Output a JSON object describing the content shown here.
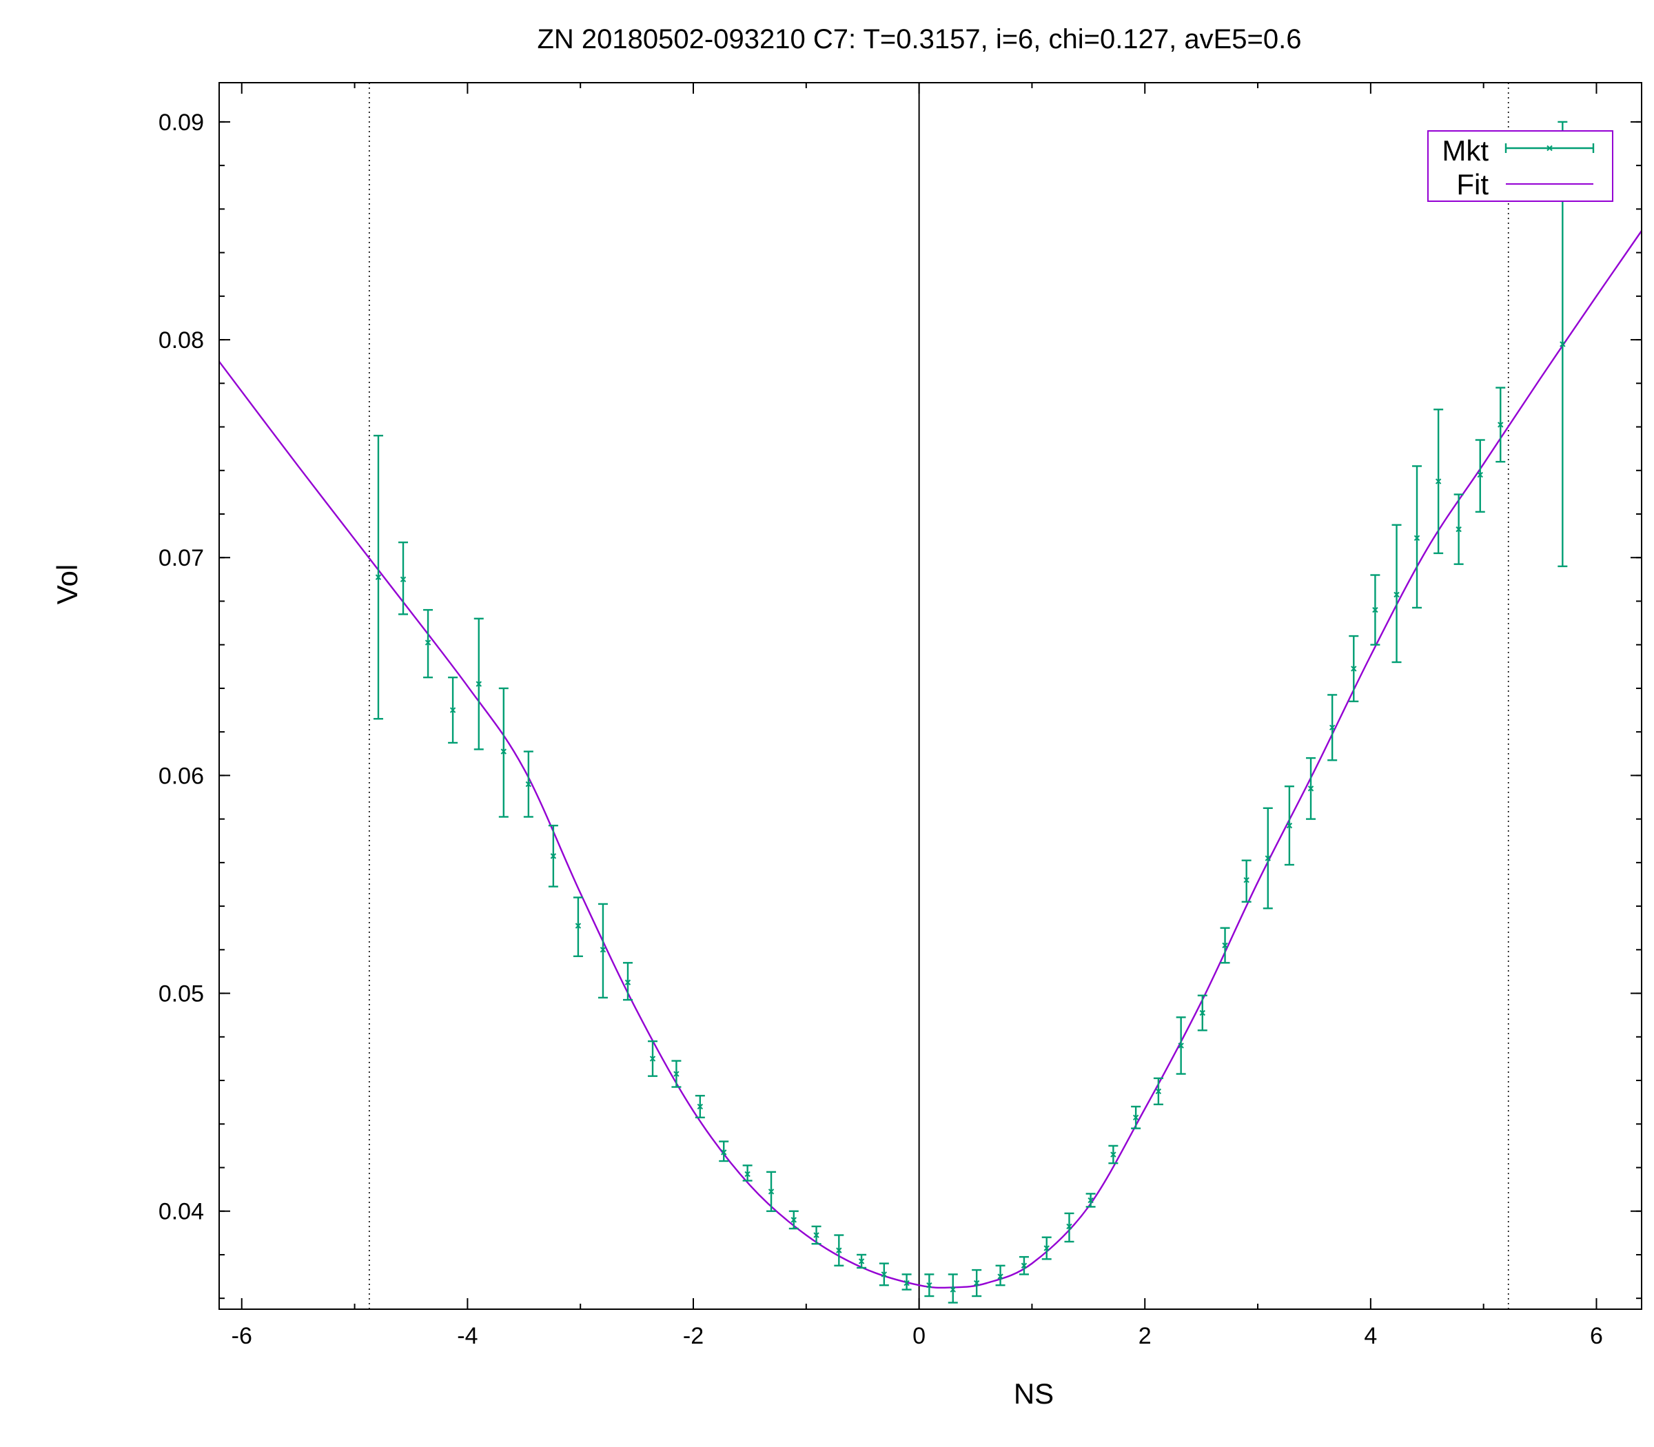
{
  "chart_data": {
    "type": "scatter",
    "title": "ZN 20180502-093210  C7:  T=0.3157, i=6, chi=0.127, avE5=0.6",
    "xlabel": "NS",
    "ylabel": "Vol",
    "xlim": [
      -6.2,
      6.4
    ],
    "ylim": [
      0.0355,
      0.0918
    ],
    "x_ticks": [
      -6,
      -4,
      -2,
      0,
      2,
      4,
      6
    ],
    "x_tick_labels": [
      "-6",
      "-4",
      "-2",
      "0",
      "2",
      "4",
      "6"
    ],
    "y_ticks": [
      0.04,
      0.05,
      0.06,
      0.07,
      0.08,
      0.09
    ],
    "y_tick_labels": [
      "0.04",
      "0.05",
      "0.06",
      "0.07",
      "0.08",
      "0.09"
    ],
    "grid": false,
    "legend_position": "top-right",
    "vertical_lines": [
      {
        "x": 0,
        "style": "solid"
      },
      {
        "x": -4.87,
        "style": "dotted"
      },
      {
        "x": 5.22,
        "style": "dotted"
      }
    ],
    "series": [
      {
        "name": "Mkt",
        "kind": "errorbars",
        "color": "#009e73",
        "points": [
          {
            "x": -4.79,
            "y": 0.0691,
            "lo": 0.0626,
            "hi": 0.0756
          },
          {
            "x": -4.57,
            "y": 0.069,
            "lo": 0.0674,
            "hi": 0.0707
          },
          {
            "x": -4.35,
            "y": 0.0661,
            "lo": 0.0645,
            "hi": 0.0676
          },
          {
            "x": -4.13,
            "y": 0.063,
            "lo": 0.0615,
            "hi": 0.0645
          },
          {
            "x": -3.9,
            "y": 0.0642,
            "lo": 0.0612,
            "hi": 0.0672
          },
          {
            "x": -3.68,
            "y": 0.0611,
            "lo": 0.0581,
            "hi": 0.064
          },
          {
            "x": -3.46,
            "y": 0.0596,
            "lo": 0.0581,
            "hi": 0.0611
          },
          {
            "x": -3.24,
            "y": 0.0563,
            "lo": 0.0549,
            "hi": 0.0577
          },
          {
            "x": -3.02,
            "y": 0.0531,
            "lo": 0.0517,
            "hi": 0.0544
          },
          {
            "x": -2.8,
            "y": 0.052,
            "lo": 0.0498,
            "hi": 0.0541
          },
          {
            "x": -2.58,
            "y": 0.0505,
            "lo": 0.0497,
            "hi": 0.0514
          },
          {
            "x": -2.36,
            "y": 0.047,
            "lo": 0.0462,
            "hi": 0.0478
          },
          {
            "x": -2.15,
            "y": 0.0463,
            "lo": 0.0457,
            "hi": 0.0469
          },
          {
            "x": -1.94,
            "y": 0.0448,
            "lo": 0.0443,
            "hi": 0.0453
          },
          {
            "x": -1.73,
            "y": 0.0427,
            "lo": 0.0423,
            "hi": 0.0432
          },
          {
            "x": -1.52,
            "y": 0.0417,
            "lo": 0.0414,
            "hi": 0.0421
          },
          {
            "x": -1.31,
            "y": 0.0409,
            "lo": 0.04,
            "hi": 0.0418
          },
          {
            "x": -1.11,
            "y": 0.0396,
            "lo": 0.0392,
            "hi": 0.04
          },
          {
            "x": -0.91,
            "y": 0.0389,
            "lo": 0.0385,
            "hi": 0.0393
          },
          {
            "x": -0.71,
            "y": 0.0382,
            "lo": 0.0375,
            "hi": 0.0389
          },
          {
            "x": -0.51,
            "y": 0.0377,
            "lo": 0.0374,
            "hi": 0.038
          },
          {
            "x": -0.31,
            "y": 0.0371,
            "lo": 0.0366,
            "hi": 0.0376
          },
          {
            "x": -0.11,
            "y": 0.0367,
            "lo": 0.0364,
            "hi": 0.0371
          },
          {
            "x": 0.09,
            "y": 0.0366,
            "lo": 0.0361,
            "hi": 0.0371
          },
          {
            "x": 0.3,
            "y": 0.0364,
            "lo": 0.0358,
            "hi": 0.0371
          },
          {
            "x": 0.51,
            "y": 0.0367,
            "lo": 0.0361,
            "hi": 0.0373
          },
          {
            "x": 0.72,
            "y": 0.037,
            "lo": 0.0366,
            "hi": 0.0375
          },
          {
            "x": 0.93,
            "y": 0.0375,
            "lo": 0.0371,
            "hi": 0.0379
          },
          {
            "x": 1.13,
            "y": 0.0383,
            "lo": 0.0378,
            "hi": 0.0388
          },
          {
            "x": 1.33,
            "y": 0.0393,
            "lo": 0.0386,
            "hi": 0.0399
          },
          {
            "x": 1.52,
            "y": 0.0405,
            "lo": 0.0402,
            "hi": 0.0408
          },
          {
            "x": 1.72,
            "y": 0.0426,
            "lo": 0.0422,
            "hi": 0.043
          },
          {
            "x": 1.92,
            "y": 0.0443,
            "lo": 0.0438,
            "hi": 0.0448
          },
          {
            "x": 2.12,
            "y": 0.0455,
            "lo": 0.0449,
            "hi": 0.0461
          },
          {
            "x": 2.32,
            "y": 0.0476,
            "lo": 0.0463,
            "hi": 0.0489
          },
          {
            "x": 2.51,
            "y": 0.0491,
            "lo": 0.0483,
            "hi": 0.0499
          },
          {
            "x": 2.71,
            "y": 0.0522,
            "lo": 0.0514,
            "hi": 0.053
          },
          {
            "x": 2.9,
            "y": 0.0552,
            "lo": 0.0542,
            "hi": 0.0561
          },
          {
            "x": 3.09,
            "y": 0.0562,
            "lo": 0.0539,
            "hi": 0.0585
          },
          {
            "x": 3.28,
            "y": 0.0577,
            "lo": 0.0559,
            "hi": 0.0595
          },
          {
            "x": 3.47,
            "y": 0.0594,
            "lo": 0.058,
            "hi": 0.0608
          },
          {
            "x": 3.66,
            "y": 0.0622,
            "lo": 0.0607,
            "hi": 0.0637
          },
          {
            "x": 3.85,
            "y": 0.0649,
            "lo": 0.0634,
            "hi": 0.0664
          },
          {
            "x": 4.04,
            "y": 0.0676,
            "lo": 0.066,
            "hi": 0.0692
          },
          {
            "x": 4.23,
            "y": 0.0683,
            "lo": 0.0652,
            "hi": 0.0715
          },
          {
            "x": 4.41,
            "y": 0.0709,
            "lo": 0.0677,
            "hi": 0.0742
          },
          {
            "x": 4.6,
            "y": 0.0735,
            "lo": 0.0702,
            "hi": 0.0768
          },
          {
            "x": 4.78,
            "y": 0.0713,
            "lo": 0.0697,
            "hi": 0.0729
          },
          {
            "x": 4.97,
            "y": 0.0738,
            "lo": 0.0721,
            "hi": 0.0754
          },
          {
            "x": 5.15,
            "y": 0.0761,
            "lo": 0.0744,
            "hi": 0.0778
          },
          {
            "x": 5.7,
            "y": 0.0798,
            "lo": 0.0696,
            "hi": 0.09
          }
        ]
      },
      {
        "name": "Fit",
        "kind": "line",
        "color": "#9400d3",
        "points": [
          {
            "x": -6.2,
            "y": 0.079
          },
          {
            "x": -5.5,
            "y": 0.0742
          },
          {
            "x": -4.8,
            "y": 0.0695
          },
          {
            "x": -4.0,
            "y": 0.0641
          },
          {
            "x": -3.5,
            "y": 0.0603
          },
          {
            "x": -3.0,
            "y": 0.0546
          },
          {
            "x": -2.5,
            "y": 0.0492
          },
          {
            "x": -2.0,
            "y": 0.0446
          },
          {
            "x": -1.5,
            "y": 0.0412
          },
          {
            "x": -1.0,
            "y": 0.0389
          },
          {
            "x": -0.5,
            "y": 0.0374
          },
          {
            "x": 0.0,
            "y": 0.0366
          },
          {
            "x": 0.3,
            "y": 0.0365
          },
          {
            "x": 0.6,
            "y": 0.0367
          },
          {
            "x": 1.0,
            "y": 0.0376
          },
          {
            "x": 1.5,
            "y": 0.0402
          },
          {
            "x": 2.0,
            "y": 0.0447
          },
          {
            "x": 2.5,
            "y": 0.0496
          },
          {
            "x": 3.0,
            "y": 0.0551
          },
          {
            "x": 3.5,
            "y": 0.0602
          },
          {
            "x": 4.0,
            "y": 0.0655
          },
          {
            "x": 4.5,
            "y": 0.0704
          },
          {
            "x": 5.0,
            "y": 0.0743
          },
          {
            "x": 5.5,
            "y": 0.0782
          },
          {
            "x": 6.0,
            "y": 0.082
          },
          {
            "x": 6.4,
            "y": 0.085
          }
        ]
      }
    ]
  }
}
